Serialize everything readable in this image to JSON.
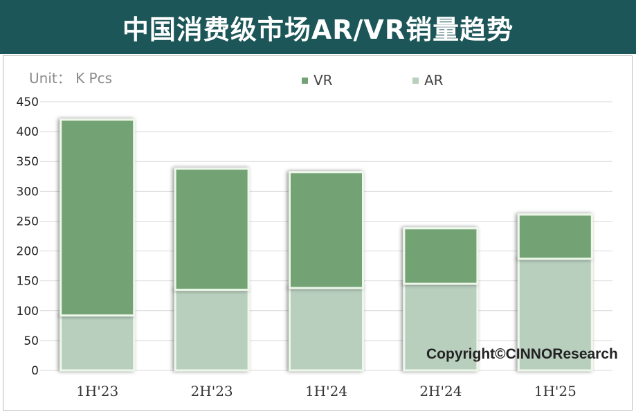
{
  "title": "中国消费级市场AR/VR销量趋势",
  "copyright": "Copyright©CINNOResearch",
  "chart_data": {
    "type": "bar",
    "stacked": true,
    "categories": [
      "1H'23",
      "2H'23",
      "1H'24",
      "2H'24",
      "1H'25"
    ],
    "series": [
      {
        "name": "AR",
        "values": [
          92,
          135,
          138,
          145,
          187
        ],
        "color": "#b8cfbe"
      },
      {
        "name": "VR",
        "values": [
          328,
          203,
          194,
          93,
          74
        ],
        "color": "#73a374"
      }
    ],
    "unit_label": "Unit： K Pcs",
    "ylim": [
      0,
      450
    ],
    "yticks": [
      0,
      50,
      100,
      150,
      200,
      250,
      300,
      350,
      400,
      450
    ],
    "grid": true,
    "legend_position": "top"
  }
}
